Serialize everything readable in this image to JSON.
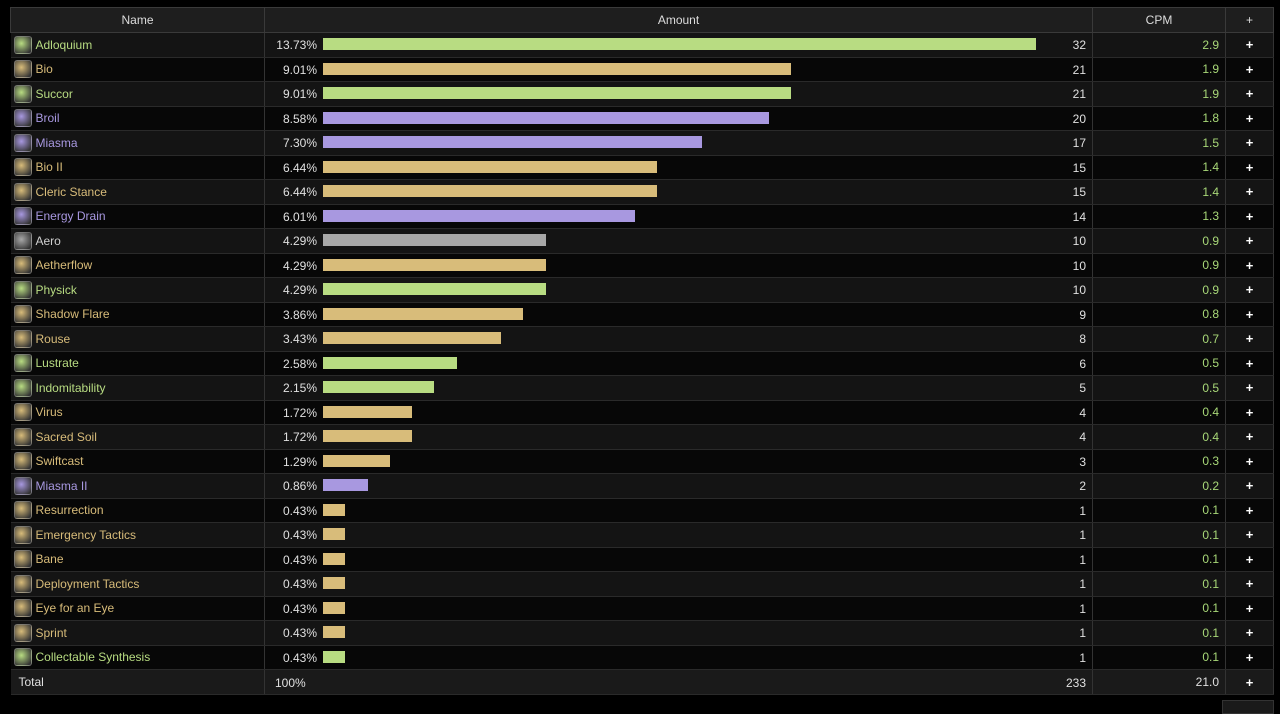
{
  "header": {
    "name": "Name",
    "amount": "Amount",
    "cpm": "CPM",
    "plus": "+"
  },
  "colors": {
    "green": "#b8dc82",
    "tan": "#d8bc7a",
    "purple": "#a898e0",
    "gray": "#a8a8a8"
  },
  "rows": [
    {
      "name": "Adloquium",
      "pct": "13.73%",
      "count": "32",
      "cpm": "2.9",
      "color": "green",
      "nameColor": "#b8dc82",
      "icon": "adloquium-icon",
      "frac": 1.0
    },
    {
      "name": "Bio",
      "pct": "9.01%",
      "count": "21",
      "cpm": "1.9",
      "color": "tan",
      "nameColor": "#d8bc7a",
      "icon": "bio-icon",
      "frac": 0.656
    },
    {
      "name": "Succor",
      "pct": "9.01%",
      "count": "21",
      "cpm": "1.9",
      "color": "green",
      "nameColor": "#b8dc82",
      "icon": "succor-icon",
      "frac": 0.656
    },
    {
      "name": "Broil",
      "pct": "8.58%",
      "count": "20",
      "cpm": "1.8",
      "color": "purple",
      "nameColor": "#a898e0",
      "icon": "broil-icon",
      "frac": 0.625
    },
    {
      "name": "Miasma",
      "pct": "7.30%",
      "count": "17",
      "cpm": "1.5",
      "color": "purple",
      "nameColor": "#a898e0",
      "icon": "miasma-icon",
      "frac": 0.531
    },
    {
      "name": "Bio II",
      "pct": "6.44%",
      "count": "15",
      "cpm": "1.4",
      "color": "tan",
      "nameColor": "#d8bc7a",
      "icon": "bio-ii-icon",
      "frac": 0.469
    },
    {
      "name": "Cleric Stance",
      "pct": "6.44%",
      "count": "15",
      "cpm": "1.4",
      "color": "tan",
      "nameColor": "#d8bc7a",
      "icon": "cleric-stance-icon",
      "frac": 0.469
    },
    {
      "name": "Energy Drain",
      "pct": "6.01%",
      "count": "14",
      "cpm": "1.3",
      "color": "purple",
      "nameColor": "#a898e0",
      "icon": "energy-drain-icon",
      "frac": 0.438
    },
    {
      "name": "Aero",
      "pct": "4.29%",
      "count": "10",
      "cpm": "0.9",
      "color": "gray",
      "nameColor": "#d0d0d0",
      "icon": "aero-icon",
      "frac": 0.3125
    },
    {
      "name": "Aetherflow",
      "pct": "4.29%",
      "count": "10",
      "cpm": "0.9",
      "color": "tan",
      "nameColor": "#d8bc7a",
      "icon": "aetherflow-icon",
      "frac": 0.3125
    },
    {
      "name": "Physick",
      "pct": "4.29%",
      "count": "10",
      "cpm": "0.9",
      "color": "green",
      "nameColor": "#b8dc82",
      "icon": "physick-icon",
      "frac": 0.3125
    },
    {
      "name": "Shadow Flare",
      "pct": "3.86%",
      "count": "9",
      "cpm": "0.8",
      "color": "tan",
      "nameColor": "#d8bc7a",
      "icon": "shadow-flare-icon",
      "frac": 0.281
    },
    {
      "name": "Rouse",
      "pct": "3.43%",
      "count": "8",
      "cpm": "0.7",
      "color": "tan",
      "nameColor": "#d8bc7a",
      "icon": "rouse-icon",
      "frac": 0.25
    },
    {
      "name": "Lustrate",
      "pct": "2.58%",
      "count": "6",
      "cpm": "0.5",
      "color": "green",
      "nameColor": "#b8dc82",
      "icon": "lustrate-icon",
      "frac": 0.1875
    },
    {
      "name": "Indomitability",
      "pct": "2.15%",
      "count": "5",
      "cpm": "0.5",
      "color": "green",
      "nameColor": "#b8dc82",
      "icon": "indomitability-icon",
      "frac": 0.156
    },
    {
      "name": "Virus",
      "pct": "1.72%",
      "count": "4",
      "cpm": "0.4",
      "color": "tan",
      "nameColor": "#d8bc7a",
      "icon": "virus-icon",
      "frac": 0.125
    },
    {
      "name": "Sacred Soil",
      "pct": "1.72%",
      "count": "4",
      "cpm": "0.4",
      "color": "tan",
      "nameColor": "#d8bc7a",
      "icon": "sacred-soil-icon",
      "frac": 0.125
    },
    {
      "name": "Swiftcast",
      "pct": "1.29%",
      "count": "3",
      "cpm": "0.3",
      "color": "tan",
      "nameColor": "#d8bc7a",
      "icon": "swiftcast-icon",
      "frac": 0.094
    },
    {
      "name": "Miasma II",
      "pct": "0.86%",
      "count": "2",
      "cpm": "0.2",
      "color": "purple",
      "nameColor": "#a898e0",
      "icon": "miasma-ii-icon",
      "frac": 0.0625
    },
    {
      "name": "Resurrection",
      "pct": "0.43%",
      "count": "1",
      "cpm": "0.1",
      "color": "tan",
      "nameColor": "#d8bc7a",
      "icon": "resurrection-icon",
      "frac": 0.031
    },
    {
      "name": "Emergency Tactics",
      "pct": "0.43%",
      "count": "1",
      "cpm": "0.1",
      "color": "tan",
      "nameColor": "#d8bc7a",
      "icon": "emergency-tactics-icon",
      "frac": 0.031
    },
    {
      "name": "Bane",
      "pct": "0.43%",
      "count": "1",
      "cpm": "0.1",
      "color": "tan",
      "nameColor": "#d8bc7a",
      "icon": "bane-icon",
      "frac": 0.031
    },
    {
      "name": "Deployment Tactics",
      "pct": "0.43%",
      "count": "1",
      "cpm": "0.1",
      "color": "tan",
      "nameColor": "#d8bc7a",
      "icon": "deployment-tactics-icon",
      "frac": 0.031
    },
    {
      "name": "Eye for an Eye",
      "pct": "0.43%",
      "count": "1",
      "cpm": "0.1",
      "color": "tan",
      "nameColor": "#d8bc7a",
      "icon": "eye-for-an-eye-icon",
      "frac": 0.031
    },
    {
      "name": "Sprint",
      "pct": "0.43%",
      "count": "1",
      "cpm": "0.1",
      "color": "tan",
      "nameColor": "#d8bc7a",
      "icon": "sprint-icon",
      "frac": 0.031
    },
    {
      "name": "Collectable Synthesis",
      "pct": "0.43%",
      "count": "1",
      "cpm": "0.1",
      "color": "green",
      "nameColor": "#b8dc82",
      "icon": "collectable-synthesis-icon",
      "frac": 0.031
    }
  ],
  "total": {
    "label": "Total",
    "pct": "100%",
    "count": "233",
    "cpm": "21.0",
    "plus": "+"
  }
}
